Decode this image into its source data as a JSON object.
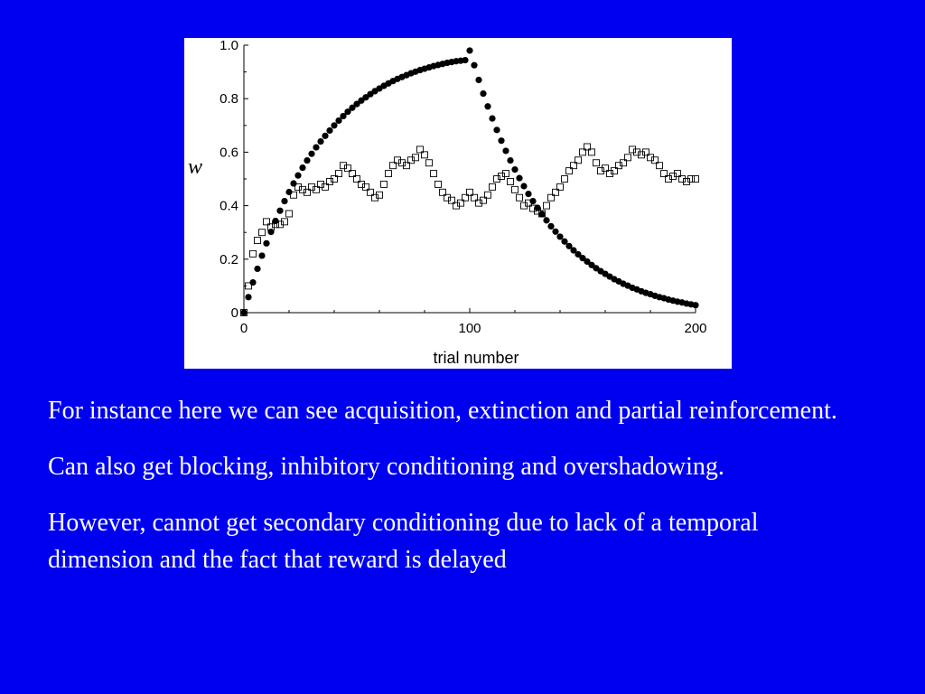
{
  "chart_data": {
    "type": "scatter",
    "xlabel": "trial number",
    "ylabel": "w",
    "xlim": [
      0,
      200
    ],
    "ylim": [
      0,
      1.0
    ],
    "xticks": [
      0,
      100,
      200
    ],
    "yticks": [
      0,
      0.2,
      0.4,
      0.6,
      0.8,
      1.0
    ],
    "ytick_labels": [
      "0",
      "0.2",
      "0.4",
      "0.6",
      "0.8",
      "1.0"
    ],
    "grid": false,
    "series": [
      {
        "marker": "filled-circle",
        "color": "#000000",
        "x": [
          0,
          2,
          4,
          6,
          8,
          10,
          12,
          14,
          16,
          18,
          20,
          22,
          24,
          26,
          28,
          30,
          32,
          34,
          36,
          38,
          40,
          42,
          44,
          46,
          48,
          50,
          52,
          54,
          56,
          58,
          60,
          62,
          64,
          66,
          68,
          70,
          72,
          74,
          76,
          78,
          80,
          82,
          84,
          86,
          88,
          90,
          92,
          94,
          96,
          98,
          100,
          102,
          104,
          106,
          108,
          110,
          112,
          114,
          116,
          118,
          120,
          122,
          124,
          126,
          128,
          130,
          132,
          134,
          136,
          138,
          140,
          142,
          144,
          146,
          148,
          150,
          152,
          154,
          156,
          158,
          160,
          162,
          164,
          166,
          168,
          170,
          172,
          174,
          176,
          178,
          180,
          182,
          184,
          186,
          188,
          190,
          192,
          194,
          196,
          198,
          200
        ],
        "y": [
          0.0,
          0.058,
          0.113,
          0.164,
          0.213,
          0.259,
          0.302,
          0.343,
          0.381,
          0.417,
          0.451,
          0.483,
          0.513,
          0.542,
          0.569,
          0.594,
          0.618,
          0.64,
          0.661,
          0.681,
          0.7,
          0.718,
          0.735,
          0.751,
          0.766,
          0.78,
          0.793,
          0.805,
          0.817,
          0.828,
          0.838,
          0.848,
          0.857,
          0.866,
          0.874,
          0.881,
          0.888,
          0.895,
          0.901,
          0.907,
          0.912,
          0.917,
          0.922,
          0.926,
          0.93,
          0.934,
          0.937,
          0.94,
          0.942,
          0.944,
          0.98,
          0.925,
          0.87,
          0.819,
          0.771,
          0.726,
          0.683,
          0.643,
          0.605,
          0.569,
          0.535,
          0.503,
          0.473,
          0.444,
          0.417,
          0.392,
          0.368,
          0.345,
          0.323,
          0.303,
          0.284,
          0.266,
          0.249,
          0.233,
          0.218,
          0.204,
          0.191,
          0.178,
          0.166,
          0.155,
          0.145,
          0.135,
          0.125,
          0.117,
          0.108,
          0.101,
          0.093,
          0.087,
          0.08,
          0.074,
          0.069,
          0.063,
          0.058,
          0.054,
          0.049,
          0.045,
          0.041,
          0.038,
          0.034,
          0.031,
          0.028
        ]
      },
      {
        "marker": "open-square",
        "color": "#000000",
        "x": [
          0,
          2,
          4,
          6,
          8,
          10,
          12,
          14,
          16,
          18,
          20,
          22,
          24,
          26,
          28,
          30,
          32,
          34,
          36,
          38,
          40,
          42,
          44,
          46,
          48,
          50,
          52,
          54,
          56,
          58,
          60,
          62,
          64,
          66,
          68,
          70,
          72,
          74,
          76,
          78,
          80,
          82,
          84,
          86,
          88,
          90,
          92,
          94,
          96,
          98,
          100,
          102,
          104,
          106,
          108,
          110,
          112,
          114,
          116,
          118,
          120,
          122,
          124,
          126,
          128,
          130,
          132,
          134,
          136,
          138,
          140,
          142,
          144,
          146,
          148,
          150,
          152,
          154,
          156,
          158,
          160,
          162,
          164,
          166,
          168,
          170,
          172,
          174,
          176,
          178,
          180,
          182,
          184,
          186,
          188,
          190,
          192,
          194,
          196,
          198,
          200
        ],
        "y": [
          0.0,
          0.1,
          0.22,
          0.27,
          0.3,
          0.34,
          0.32,
          0.33,
          0.33,
          0.34,
          0.37,
          0.44,
          0.47,
          0.46,
          0.45,
          0.47,
          0.46,
          0.48,
          0.47,
          0.49,
          0.5,
          0.52,
          0.55,
          0.54,
          0.52,
          0.5,
          0.48,
          0.47,
          0.45,
          0.43,
          0.44,
          0.48,
          0.52,
          0.55,
          0.57,
          0.56,
          0.55,
          0.57,
          0.58,
          0.61,
          0.59,
          0.56,
          0.52,
          0.48,
          0.45,
          0.43,
          0.42,
          0.4,
          0.41,
          0.43,
          0.45,
          0.43,
          0.41,
          0.42,
          0.44,
          0.47,
          0.5,
          0.51,
          0.52,
          0.49,
          0.46,
          0.43,
          0.4,
          0.41,
          0.39,
          0.38,
          0.37,
          0.4,
          0.43,
          0.45,
          0.47,
          0.5,
          0.53,
          0.55,
          0.57,
          0.6,
          0.62,
          0.6,
          0.56,
          0.53,
          0.54,
          0.52,
          0.53,
          0.55,
          0.56,
          0.58,
          0.61,
          0.6,
          0.59,
          0.6,
          0.58,
          0.57,
          0.55,
          0.52,
          0.5,
          0.51,
          0.52,
          0.5,
          0.49,
          0.5,
          0.5
        ]
      }
    ]
  },
  "paragraphs": [
    "For instance here we can see acquisition, extinction and partial reinforcement.",
    "Can also get blocking, inhibitory conditioning and overshadowing.",
    "However, cannot get secondary conditioning due to lack of a temporal dimension and the fact that reward is delayed"
  ]
}
